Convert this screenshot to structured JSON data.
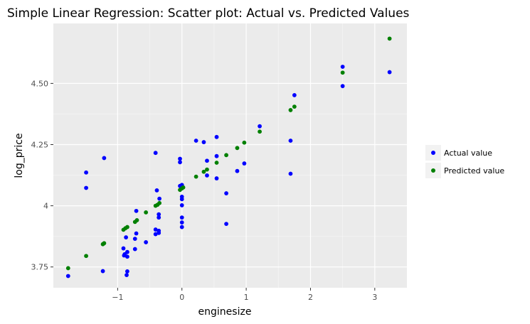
{
  "chart_data": {
    "type": "scatter",
    "title": "Simple Linear Regression: Scatter plot: Actual vs. Predicted Values",
    "xlabel": "enginesize",
    "ylabel": "log_price",
    "xlim": [
      -2.0,
      3.5
    ],
    "ylim": [
      3.665,
      4.745
    ],
    "x_ticks": [
      -1,
      0,
      1,
      2,
      3
    ],
    "x_tick_labels": [
      "−1",
      "0",
      "1",
      "2",
      "3"
    ],
    "y_ticks": [
      3.75,
      4.0,
      4.25,
      4.5
    ],
    "y_tick_labels": [
      "3.75",
      "4",
      "4.25",
      "4.50"
    ],
    "grid": true,
    "legend_position": "right",
    "series": [
      {
        "name": "Actual value",
        "color": "#0000ff",
        "points": [
          [
            -1.77,
            3.713
          ],
          [
            -1.49,
            4.136
          ],
          [
            -1.49,
            4.073
          ],
          [
            -1.23,
            3.733
          ],
          [
            -1.21,
            4.195
          ],
          [
            -0.91,
            3.826
          ],
          [
            -0.9,
            3.797
          ],
          [
            -0.89,
            3.802
          ],
          [
            -0.87,
            3.871
          ],
          [
            -0.86,
            3.717
          ],
          [
            -0.85,
            3.732
          ],
          [
            -0.85,
            3.792
          ],
          [
            -0.85,
            3.811
          ],
          [
            -0.73,
            3.865
          ],
          [
            -0.73,
            3.823
          ],
          [
            -0.71,
            3.887
          ],
          [
            -0.71,
            3.979
          ],
          [
            -0.56,
            3.851
          ],
          [
            -0.41,
            3.884
          ],
          [
            -0.41,
            3.903
          ],
          [
            -0.41,
            4.216
          ],
          [
            -0.39,
            4.063
          ],
          [
            -0.36,
            3.898
          ],
          [
            -0.36,
            3.889
          ],
          [
            -0.36,
            3.952
          ],
          [
            -0.36,
            3.965
          ],
          [
            -0.35,
            4.029
          ],
          [
            -0.03,
            4.081
          ],
          [
            -0.03,
            4.192
          ],
          [
            -0.03,
            4.178
          ],
          [
            0.0,
            3.913
          ],
          [
            0.0,
            3.932
          ],
          [
            0.0,
            3.952
          ],
          [
            0.0,
            4.002
          ],
          [
            0.0,
            4.027
          ],
          [
            0.0,
            4.037
          ],
          [
            0.0,
            4.076
          ],
          [
            0.0,
            4.085
          ],
          [
            0.22,
            4.266
          ],
          [
            0.34,
            4.26
          ],
          [
            0.39,
            4.124
          ],
          [
            0.39,
            4.184
          ],
          [
            0.54,
            4.281
          ],
          [
            0.54,
            4.203
          ],
          [
            0.54,
            4.112
          ],
          [
            0.69,
            4.051
          ],
          [
            0.69,
            3.926
          ],
          [
            0.86,
            4.142
          ],
          [
            0.97,
            4.173
          ],
          [
            1.21,
            4.325
          ],
          [
            1.69,
            4.266
          ],
          [
            1.69,
            4.131
          ],
          [
            1.75,
            4.452
          ],
          [
            2.5,
            4.568
          ],
          [
            2.5,
            4.489
          ],
          [
            3.23,
            4.546
          ]
        ]
      },
      {
        "name": "Predicted value",
        "color": "#008000",
        "points": [
          [
            -1.77,
            3.745
          ],
          [
            -1.49,
            3.795
          ],
          [
            -1.23,
            3.843
          ],
          [
            -1.21,
            3.847
          ],
          [
            -0.91,
            3.902
          ],
          [
            -0.88,
            3.908
          ],
          [
            -0.85,
            3.913
          ],
          [
            -0.73,
            3.934
          ],
          [
            -0.7,
            3.941
          ],
          [
            -0.56,
            3.973
          ],
          [
            -0.41,
            4.0
          ],
          [
            -0.38,
            4.004
          ],
          [
            -0.35,
            4.011
          ],
          [
            -0.03,
            4.065
          ],
          [
            0.0,
            4.071
          ],
          [
            0.02,
            4.075
          ],
          [
            0.22,
            4.119
          ],
          [
            0.34,
            4.139
          ],
          [
            0.39,
            4.148
          ],
          [
            0.54,
            4.176
          ],
          [
            0.69,
            4.207
          ],
          [
            0.86,
            4.236
          ],
          [
            0.97,
            4.258
          ],
          [
            1.21,
            4.303
          ],
          [
            1.69,
            4.391
          ],
          [
            1.75,
            4.405
          ],
          [
            2.5,
            4.544
          ],
          [
            3.23,
            4.683
          ]
        ]
      }
    ]
  }
}
